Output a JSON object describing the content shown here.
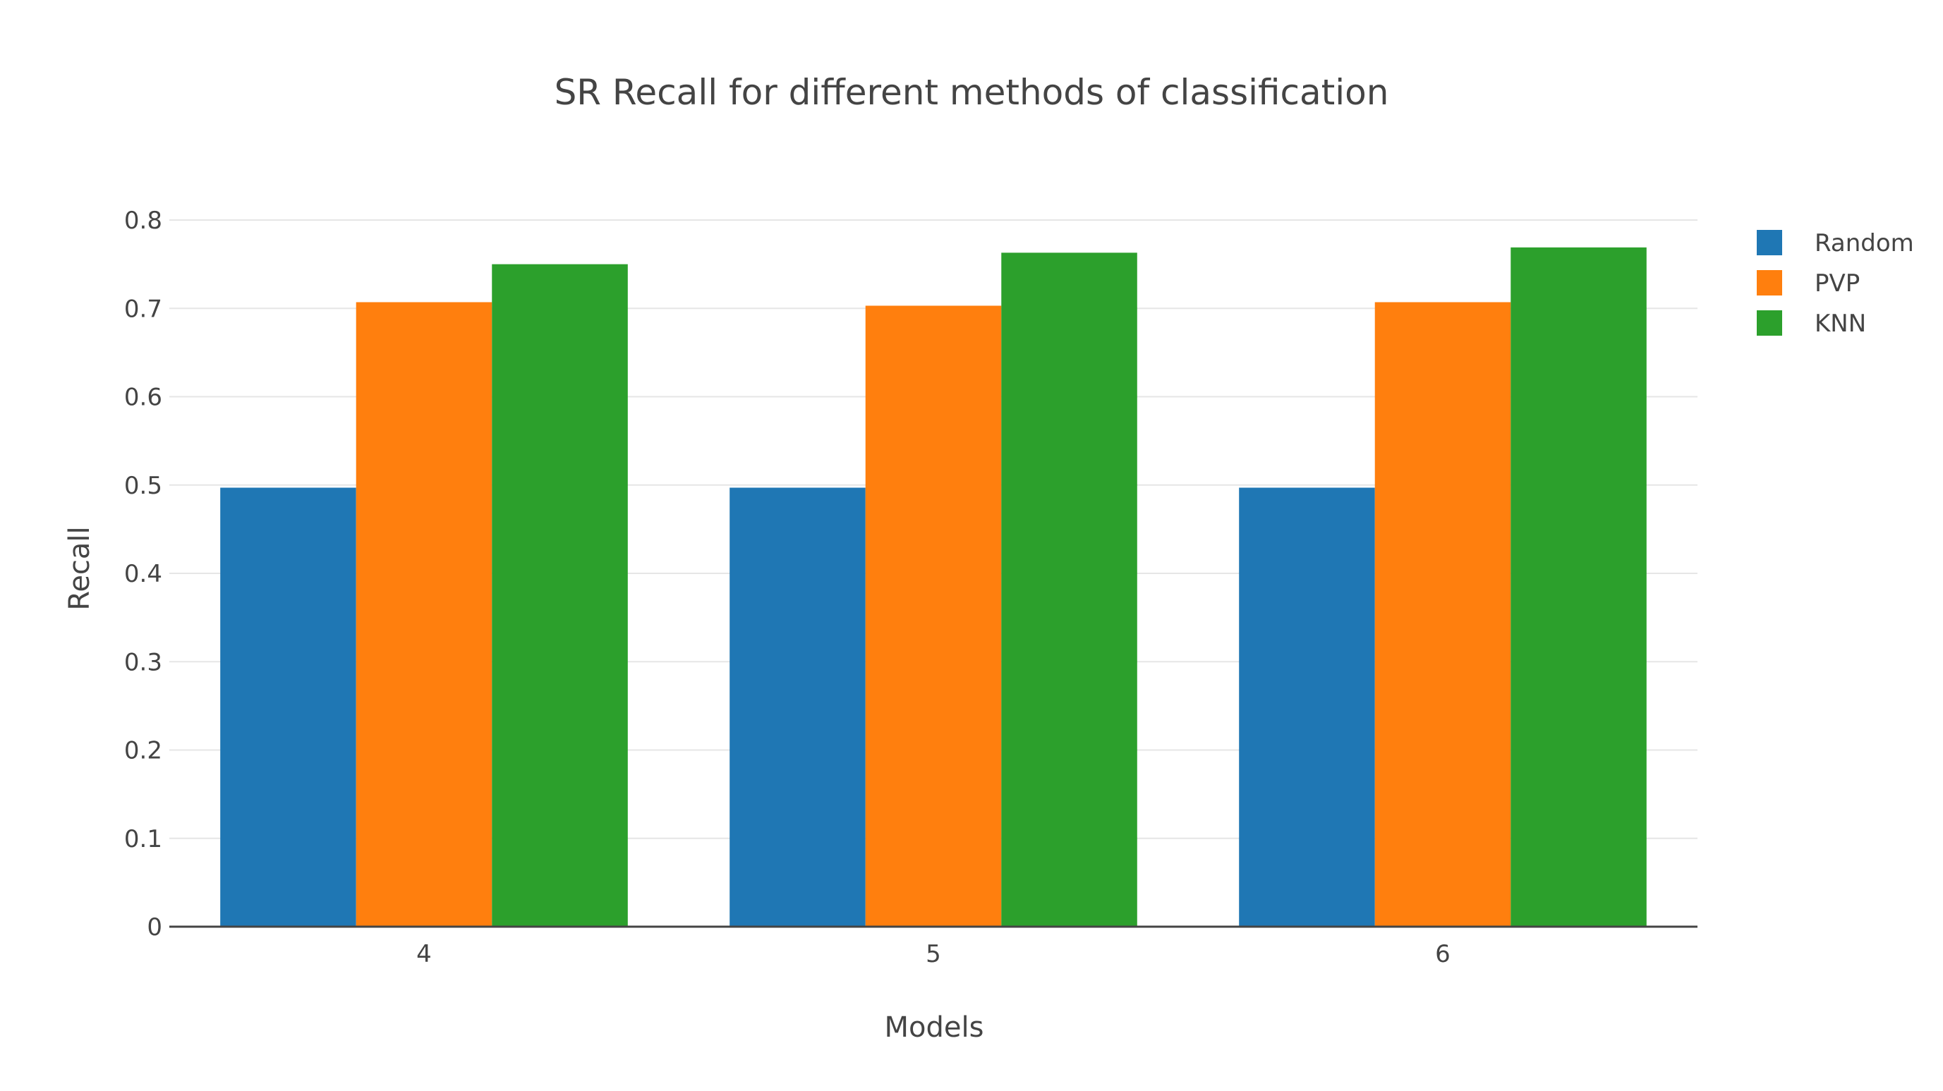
{
  "chart_data": {
    "type": "bar",
    "title": "SR Recall for different methods of classification",
    "xlabel": "Models",
    "ylabel": "Recall",
    "categories": [
      "4",
      "5",
      "6"
    ],
    "ylim": [
      0,
      0.8
    ],
    "yticks": [
      0,
      0.1,
      0.2,
      0.3,
      0.4,
      0.5,
      0.6,
      0.7,
      0.8
    ],
    "ytick_labels": [
      "0",
      "0.1",
      "0.2",
      "0.3",
      "0.4",
      "0.5",
      "0.6",
      "0.7",
      "0.8"
    ],
    "grid": true,
    "legend_position": "top-right",
    "series": [
      {
        "name": "Random",
        "color": "#1f77b4",
        "values": [
          0.497,
          0.497,
          0.497
        ]
      },
      {
        "name": "PVP",
        "color": "#ff7f0e",
        "values": [
          0.707,
          0.703,
          0.707
        ]
      },
      {
        "name": "KNN",
        "color": "#2ca02c",
        "values": [
          0.75,
          0.763,
          0.769
        ]
      }
    ]
  }
}
